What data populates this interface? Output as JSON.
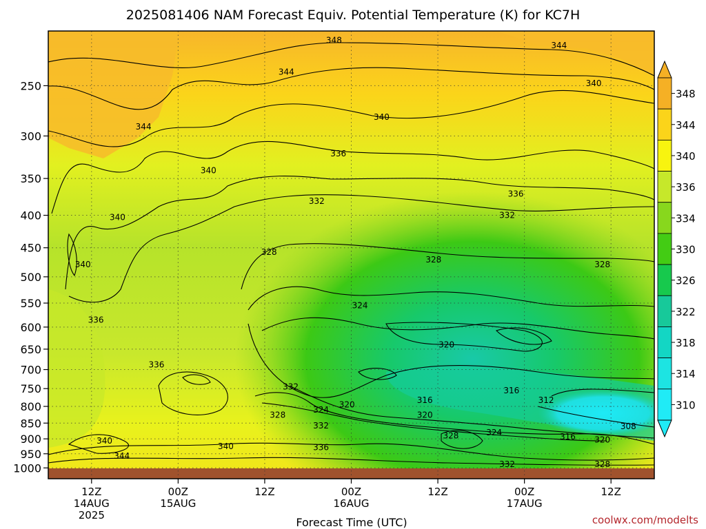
{
  "chart_data": {
    "type": "heatmap",
    "title": "2025081406 NAM Forecast Equiv. Potential Temperature (K) for KC7H",
    "xlabel": "Forecast Time (UTC)",
    "credit": "coolwx.com/modelts",
    "grid": true,
    "y_axis": {
      "quantity": "pressure (hPa)",
      "scale": "log-pressure, inverted",
      "range": [
        1040,
        205
      ],
      "ticks": [
        "250",
        "300",
        "350",
        "400",
        "450",
        "500",
        "550",
        "600",
        "650",
        "700",
        "750",
        "800",
        "850",
        "900",
        "950",
        "1000"
      ]
    },
    "x_axis": {
      "range_hours": [
        7,
        77
      ],
      "ticks": [
        {
          "hour": 12,
          "label": "12Z",
          "sub": "14AUG",
          "sub2": "2025"
        },
        {
          "hour": 22,
          "label": "00Z",
          "sub": "15AUG",
          "sub2": ""
        },
        {
          "hour": 32,
          "label": "12Z",
          "sub": "",
          "sub2": ""
        },
        {
          "hour": 42,
          "label": "00Z",
          "sub": "16AUG",
          "sub2": ""
        },
        {
          "hour": 52,
          "label": "12Z",
          "sub": "",
          "sub2": ""
        },
        {
          "hour": 62,
          "label": "00Z",
          "sub": "17AUG",
          "sub2": ""
        },
        {
          "hour": 72,
          "label": "12Z",
          "sub": "",
          "sub2": ""
        }
      ]
    },
    "colorbar": {
      "levels": [
        "348",
        "344",
        "340",
        "336",
        "334",
        "330",
        "326",
        "322",
        "318",
        "314",
        "310"
      ],
      "colors": [
        "#f5b025",
        "#fbd41a",
        "#f8f40f",
        "#c6e82a",
        "#88d71d",
        "#43cc14",
        "#17c94d",
        "#17c99a",
        "#13d6c4",
        "#1de4e2",
        "#20ebf6"
      ]
    },
    "contour_labels": [
      {
        "text": "348",
        "hour": 40,
        "p": 212
      },
      {
        "text": "344",
        "hour": 66,
        "p": 216
      },
      {
        "text": "344",
        "hour": 34.5,
        "p": 238
      },
      {
        "text": "344",
        "hour": 18,
        "p": 290
      },
      {
        "text": "340",
        "hour": 70,
        "p": 248
      },
      {
        "text": "340",
        "hour": 45.5,
        "p": 280
      },
      {
        "text": "340",
        "hour": 25.5,
        "p": 340
      },
      {
        "text": "340",
        "hour": 15,
        "p": 403
      },
      {
        "text": "340",
        "hour": 11,
        "p": 478
      },
      {
        "text": "336",
        "hour": 40.5,
        "p": 320
      },
      {
        "text": "336",
        "hour": 61,
        "p": 370
      },
      {
        "text": "332",
        "hour": 38,
        "p": 380
      },
      {
        "text": "332",
        "hour": 60,
        "p": 400
      },
      {
        "text": "328",
        "hour": 32.5,
        "p": 457
      },
      {
        "text": "328",
        "hour": 51.5,
        "p": 470
      },
      {
        "text": "328",
        "hour": 71,
        "p": 478
      },
      {
        "text": "324",
        "hour": 43,
        "p": 555
      },
      {
        "text": "320",
        "hour": 53,
        "p": 640
      },
      {
        "text": "336",
        "hour": 12.5,
        "p": 585
      },
      {
        "text": "336",
        "hour": 19.5,
        "p": 688
      },
      {
        "text": "332",
        "hour": 35,
        "p": 745
      },
      {
        "text": "324",
        "hour": 38.5,
        "p": 810
      },
      {
        "text": "320",
        "hour": 41.5,
        "p": 795
      },
      {
        "text": "316",
        "hour": 60.5,
        "p": 755
      },
      {
        "text": "316",
        "hour": 50.5,
        "p": 782
      },
      {
        "text": "312",
        "hour": 64.5,
        "p": 782
      },
      {
        "text": "320",
        "hour": 50.5,
        "p": 825
      },
      {
        "text": "328",
        "hour": 33.5,
        "p": 825
      },
      {
        "text": "332",
        "hour": 38.5,
        "p": 858
      },
      {
        "text": "328",
        "hour": 53.5,
        "p": 890
      },
      {
        "text": "324",
        "hour": 58.5,
        "p": 880
      },
      {
        "text": "316",
        "hour": 67,
        "p": 893
      },
      {
        "text": "320",
        "hour": 71,
        "p": 903
      },
      {
        "text": "308",
        "hour": 74,
        "p": 860
      },
      {
        "text": "340",
        "hour": 13.5,
        "p": 907
      },
      {
        "text": "340",
        "hour": 27.5,
        "p": 925
      },
      {
        "text": "336",
        "hour": 38.5,
        "p": 928
      },
      {
        "text": "344",
        "hour": 15.5,
        "p": 958
      },
      {
        "text": "332",
        "hour": 60,
        "p": 987
      },
      {
        "text": "328",
        "hour": 71,
        "p": 987
      }
    ]
  }
}
